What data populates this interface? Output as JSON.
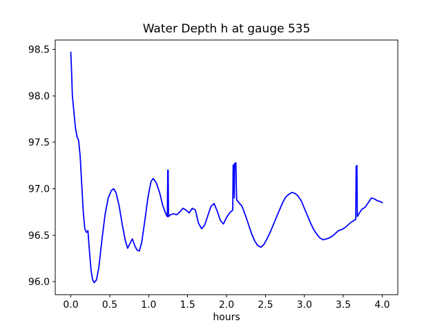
{
  "chart_data": {
    "type": "line",
    "title": "Water Depth h at gauge 535",
    "xlabel": "hours",
    "ylabel": "",
    "grid": false,
    "legend": null,
    "xlim": [
      -0.2,
      4.2
    ],
    "ylim": [
      95.86,
      98.6
    ],
    "x_ticks": [
      0.0,
      0.5,
      1.0,
      1.5,
      2.0,
      2.5,
      3.0,
      3.5,
      4.0
    ],
    "x_tick_labels": [
      "0.0",
      "0.5",
      "1.0",
      "1.5",
      "2.0",
      "2.5",
      "3.0",
      "3.5",
      "4.0"
    ],
    "y_ticks": [
      96.0,
      96.5,
      97.0,
      97.5,
      98.0,
      98.5
    ],
    "y_tick_labels": [
      "96.0",
      "96.5",
      "97.0",
      "97.5",
      "98.0",
      "98.5"
    ],
    "series": [
      {
        "name": "water depth h at gauge 535",
        "color": "#0000ff",
        "points": [
          [
            0.0,
            98.47
          ],
          [
            0.01,
            98.25
          ],
          [
            0.02,
            98.0
          ],
          [
            0.04,
            97.82
          ],
          [
            0.06,
            97.65
          ],
          [
            0.08,
            97.56
          ],
          [
            0.1,
            97.52
          ],
          [
            0.12,
            97.35
          ],
          [
            0.14,
            97.05
          ],
          [
            0.16,
            96.75
          ],
          [
            0.18,
            96.57
          ],
          [
            0.2,
            96.53
          ],
          [
            0.22,
            96.55
          ],
          [
            0.24,
            96.32
          ],
          [
            0.26,
            96.12
          ],
          [
            0.28,
            96.02
          ],
          [
            0.3,
            95.99
          ],
          [
            0.33,
            96.02
          ],
          [
            0.36,
            96.15
          ],
          [
            0.4,
            96.45
          ],
          [
            0.44,
            96.72
          ],
          [
            0.48,
            96.9
          ],
          [
            0.52,
            96.98
          ],
          [
            0.55,
            97.0
          ],
          [
            0.58,
            96.96
          ],
          [
            0.62,
            96.82
          ],
          [
            0.66,
            96.62
          ],
          [
            0.7,
            96.44
          ],
          [
            0.73,
            96.36
          ],
          [
            0.76,
            96.41
          ],
          [
            0.79,
            96.46
          ],
          [
            0.82,
            96.39
          ],
          [
            0.85,
            96.34
          ],
          [
            0.88,
            96.33
          ],
          [
            0.91,
            96.42
          ],
          [
            0.95,
            96.65
          ],
          [
            0.99,
            96.9
          ],
          [
            1.03,
            97.08
          ],
          [
            1.06,
            97.11
          ],
          [
            1.1,
            97.06
          ],
          [
            1.14,
            96.96
          ],
          [
            1.18,
            96.82
          ],
          [
            1.22,
            96.73
          ],
          [
            1.24,
            96.7
          ],
          [
            1.245,
            97.2
          ],
          [
            1.25,
            97.2
          ],
          [
            1.255,
            96.7
          ],
          [
            1.28,
            96.72
          ],
          [
            1.32,
            96.73
          ],
          [
            1.36,
            96.72
          ],
          [
            1.4,
            96.75
          ],
          [
            1.44,
            96.79
          ],
          [
            1.48,
            96.77
          ],
          [
            1.52,
            96.74
          ],
          [
            1.56,
            96.79
          ],
          [
            1.6,
            96.77
          ],
          [
            1.64,
            96.63
          ],
          [
            1.68,
            96.57
          ],
          [
            1.72,
            96.61
          ],
          [
            1.76,
            96.71
          ],
          [
            1.8,
            96.81
          ],
          [
            1.84,
            96.84
          ],
          [
            1.88,
            96.76
          ],
          [
            1.92,
            96.66
          ],
          [
            1.96,
            96.62
          ],
          [
            2.0,
            96.69
          ],
          [
            2.04,
            96.74
          ],
          [
            2.08,
            96.77
          ],
          [
            2.085,
            97.25
          ],
          [
            2.095,
            97.26
          ],
          [
            2.1,
            96.9
          ],
          [
            2.105,
            97.27
          ],
          [
            2.12,
            97.28
          ],
          [
            2.13,
            96.88
          ],
          [
            2.16,
            96.85
          ],
          [
            2.2,
            96.81
          ],
          [
            2.24,
            96.72
          ],
          [
            2.28,
            96.62
          ],
          [
            2.32,
            96.52
          ],
          [
            2.36,
            96.44
          ],
          [
            2.4,
            96.39
          ],
          [
            2.44,
            96.37
          ],
          [
            2.48,
            96.4
          ],
          [
            2.52,
            96.46
          ],
          [
            2.56,
            96.53
          ],
          [
            2.6,
            96.61
          ],
          [
            2.64,
            96.69
          ],
          [
            2.68,
            96.77
          ],
          [
            2.72,
            96.85
          ],
          [
            2.76,
            96.91
          ],
          [
            2.8,
            96.94
          ],
          [
            2.84,
            96.96
          ],
          [
            2.88,
            96.95
          ],
          [
            2.92,
            96.92
          ],
          [
            2.96,
            96.87
          ],
          [
            3.0,
            96.79
          ],
          [
            3.04,
            96.71
          ],
          [
            3.08,
            96.63
          ],
          [
            3.12,
            96.56
          ],
          [
            3.16,
            96.51
          ],
          [
            3.2,
            96.47
          ],
          [
            3.24,
            96.45
          ],
          [
            3.28,
            96.46
          ],
          [
            3.32,
            96.47
          ],
          [
            3.36,
            96.49
          ],
          [
            3.4,
            96.52
          ],
          [
            3.44,
            96.55
          ],
          [
            3.48,
            96.56
          ],
          [
            3.52,
            96.58
          ],
          [
            3.56,
            96.61
          ],
          [
            3.6,
            96.64
          ],
          [
            3.64,
            96.66
          ],
          [
            3.66,
            96.67
          ],
          [
            3.665,
            97.24
          ],
          [
            3.675,
            97.25
          ],
          [
            3.68,
            96.7
          ],
          [
            3.7,
            96.73
          ],
          [
            3.74,
            96.78
          ],
          [
            3.78,
            96.8
          ],
          [
            3.82,
            96.85
          ],
          [
            3.86,
            96.9
          ],
          [
            3.9,
            96.89
          ],
          [
            3.94,
            96.87
          ],
          [
            3.98,
            96.86
          ],
          [
            4.0,
            96.85
          ]
        ]
      }
    ]
  }
}
